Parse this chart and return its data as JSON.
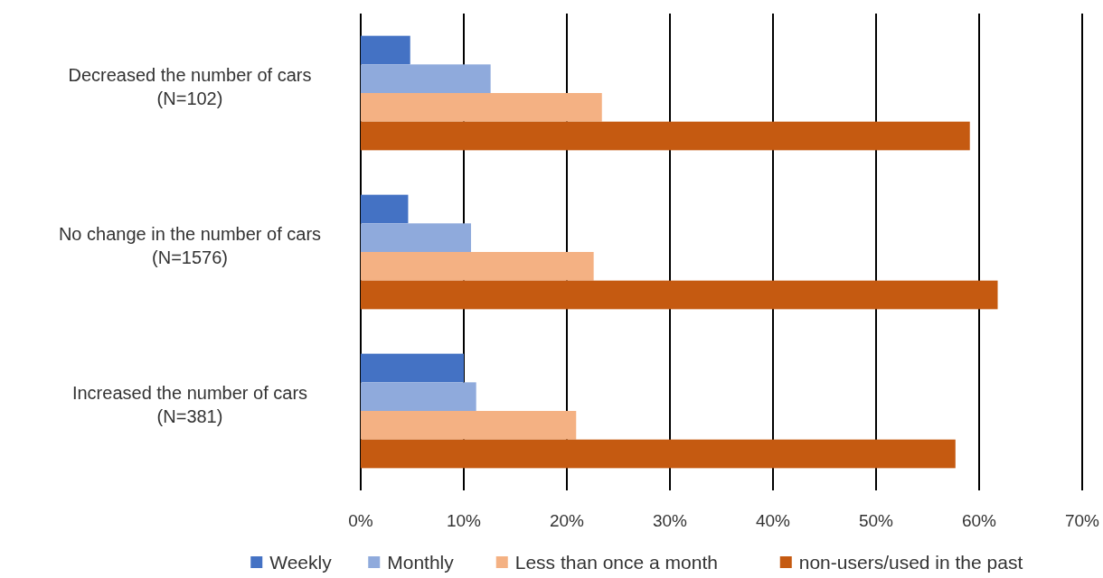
{
  "chart_data": {
    "type": "bar",
    "orientation": "horizontal",
    "categories": [
      "Decreased the number of cars\n(N=102)",
      "No change in the number of cars\n(N=1576)",
      "Increased the number of cars\n(N=381)"
    ],
    "series": [
      {
        "name": "Weekly",
        "color": "#4472c4",
        "values": [
          4.8,
          4.6,
          10.0
        ]
      },
      {
        "name": "Monthly",
        "color": "#8faadc",
        "values": [
          12.6,
          10.7,
          11.2
        ]
      },
      {
        "name": "Less than once a month",
        "color": "#f4b183",
        "values": [
          23.4,
          22.6,
          20.9
        ]
      },
      {
        "name": "non-users/used in the past",
        "color": "#c55a11",
        "values": [
          59.1,
          61.8,
          57.7
        ]
      }
    ],
    "xlim": [
      0,
      70
    ],
    "xticks": [
      {
        "value": 0,
        "label": "0%"
      },
      {
        "value": 10,
        "label": "10%"
      },
      {
        "value": 20,
        "label": "20%"
      },
      {
        "value": 30,
        "label": "30%"
      },
      {
        "value": 40,
        "label": "40%"
      },
      {
        "value": 50,
        "label": "50%"
      },
      {
        "value": 60,
        "label": "60%"
      },
      {
        "value": 70,
        "label": "70%"
      }
    ],
    "grid": "x",
    "legend": "bottom"
  }
}
